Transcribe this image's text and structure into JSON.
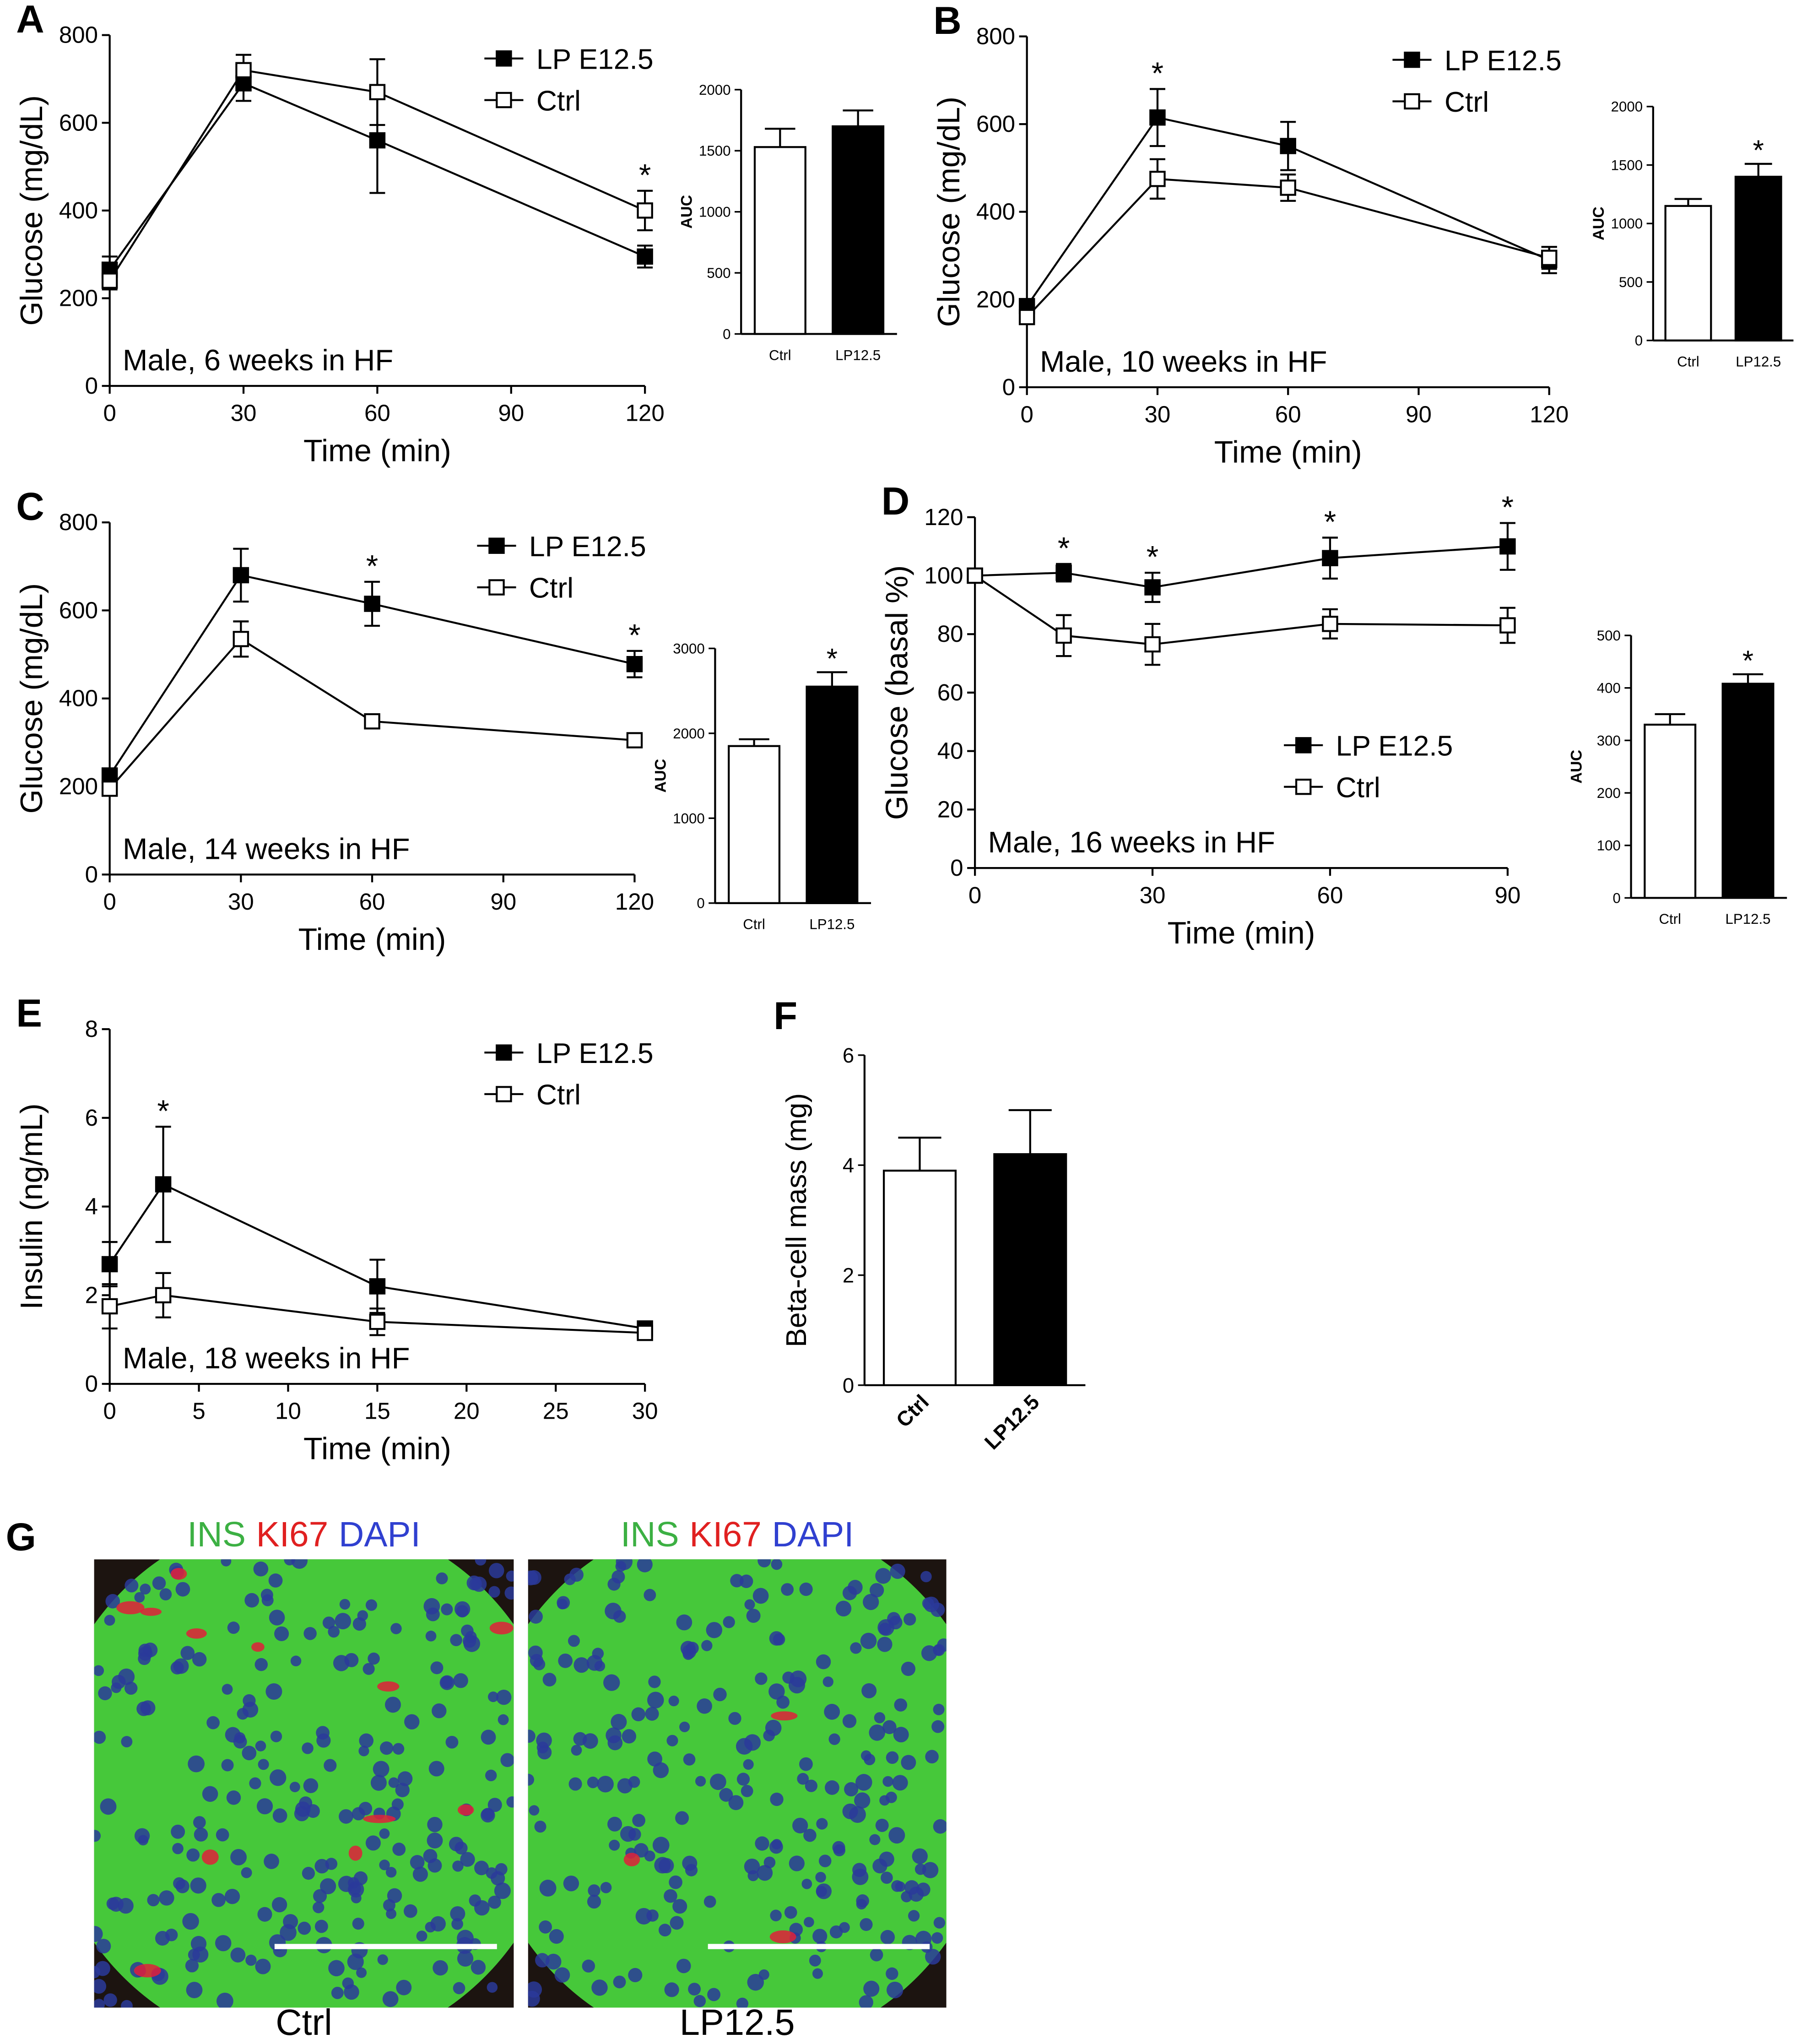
{
  "chart_data": [
    {
      "type": "line",
      "panel": "A",
      "xlabel": "Time (min)",
      "ylabel": "Glucose (mg/dL)",
      "annotation": "Male, 6 weeks in HF",
      "x": [
        0,
        30,
        60,
        120
      ],
      "xlim": [
        0,
        120
      ],
      "xticks": [
        0,
        30,
        60,
        90,
        120
      ],
      "ylim": [
        0,
        800
      ],
      "yticks": [
        0,
        200,
        400,
        600,
        800
      ],
      "legend": "upper right",
      "significance_label": "*",
      "significant": [
        false,
        false,
        false,
        true
      ],
      "series": [
        {
          "name": "LP E12.5",
          "color": "#000000",
          "marker": "square",
          "values": [
            265,
            690,
            560,
            295
          ],
          "errors": [
            30,
            40,
            120,
            25
          ]
        },
        {
          "name": "Ctrl",
          "color": "#ffffff",
          "marker": "square",
          "values": [
            240,
            720,
            670,
            400
          ],
          "errors": [
            20,
            35,
            75,
            45
          ]
        }
      ]
    },
    {
      "type": "bar",
      "ylabel": "AUC",
      "categories": [
        "Ctrl",
        "LP12.5"
      ],
      "values": [
        1530,
        1700
      ],
      "errors": [
        150,
        130
      ],
      "colors": [
        "#ffffff",
        "#000000"
      ],
      "ylim": [
        0,
        2000
      ],
      "yticks": [
        0,
        500,
        1000,
        1500,
        2000
      ],
      "significance_label": "*",
      "significant": [
        false,
        false
      ]
    },
    {
      "type": "line",
      "panel": "B",
      "xlabel": "Time (min)",
      "ylabel": "Glucose (mg/dL)",
      "annotation": "Male, 10 weeks in HF",
      "x": [
        0,
        30,
        60,
        120
      ],
      "xlim": [
        0,
        120
      ],
      "xticks": [
        0,
        30,
        60,
        90,
        120
      ],
      "ylim": [
        0,
        800
      ],
      "yticks": [
        0,
        200,
        400,
        600,
        800
      ],
      "legend": "upper right",
      "significance_label": "*",
      "significant": [
        false,
        true,
        false,
        false
      ],
      "series": [
        {
          "name": "LP E12.5",
          "color": "#000000",
          "marker": "square",
          "values": [
            185,
            615,
            550,
            290
          ],
          "errors": [
            10,
            65,
            55,
            30
          ]
        },
        {
          "name": "Ctrl",
          "color": "#ffffff",
          "marker": "square",
          "values": [
            160,
            475,
            455,
            295
          ],
          "errors": [
            15,
            45,
            30,
            25
          ]
        }
      ]
    },
    {
      "type": "bar",
      "ylabel": "AUC",
      "categories": [
        "Ctrl",
        "LP12.5"
      ],
      "values": [
        1150,
        1400
      ],
      "errors": [
        60,
        110
      ],
      "colors": [
        "#ffffff",
        "#000000"
      ],
      "ylim": [
        0,
        2000
      ],
      "yticks": [
        0,
        500,
        1000,
        1500,
        2000
      ],
      "significance_label": "*",
      "significant": [
        false,
        true
      ]
    },
    {
      "type": "line",
      "panel": "C",
      "xlabel": "Time (min)",
      "ylabel": "Glucose (mg/dL)",
      "annotation": "Male, 14 weeks in HF",
      "x": [
        0,
        30,
        60,
        120
      ],
      "xlim": [
        0,
        120
      ],
      "xticks": [
        0,
        30,
        60,
        90,
        120
      ],
      "ylim": [
        0,
        800
      ],
      "yticks": [
        0,
        200,
        400,
        600,
        800
      ],
      "legend": "upper right",
      "significance_label": "*",
      "significant": [
        false,
        false,
        true,
        true
      ],
      "series": [
        {
          "name": "LP E12.5",
          "color": "#000000",
          "marker": "square",
          "values": [
            225,
            680,
            615,
            478
          ],
          "errors": [
            15,
            60,
            50,
            30
          ]
        },
        {
          "name": "Ctrl",
          "color": "#ffffff",
          "marker": "square",
          "values": [
            195,
            535,
            348,
            305
          ],
          "errors": [
            10,
            40,
            10,
            10
          ]
        }
      ]
    },
    {
      "type": "bar",
      "ylabel": "AUC",
      "categories": [
        "Ctrl",
        "LP12.5"
      ],
      "values": [
        1850,
        2550
      ],
      "errors": [
        80,
        170
      ],
      "colors": [
        "#ffffff",
        "#000000"
      ],
      "ylim": [
        0,
        3000
      ],
      "yticks": [
        0,
        1000,
        2000,
        3000
      ],
      "significance_label": "*",
      "significant": [
        false,
        true
      ]
    },
    {
      "type": "line",
      "panel": "D",
      "xlabel": "Time (min)",
      "ylabel": "Glucose (basal %)",
      "annotation": "Male, 16 weeks in HF",
      "x": [
        0,
        15,
        30,
        60,
        90
      ],
      "xlim": [
        0,
        90
      ],
      "xticks": [
        0,
        30,
        60,
        90
      ],
      "ylim": [
        0,
        120
      ],
      "yticks": [
        0,
        20,
        40,
        60,
        80,
        100,
        120
      ],
      "legend": "lower right",
      "significance_label": "*",
      "significant": [
        false,
        true,
        true,
        true,
        true
      ],
      "series": [
        {
          "name": "LP E12.5",
          "color": "#000000",
          "marker": "square",
          "values": [
            100,
            101,
            96,
            106,
            110
          ],
          "errors": [
            0,
            3,
            5,
            7,
            8
          ]
        },
        {
          "name": "Ctrl",
          "color": "#ffffff",
          "marker": "square",
          "values": [
            100,
            79.5,
            76.5,
            83.5,
            83
          ],
          "errors": [
            0,
            7,
            7,
            5,
            6
          ]
        }
      ]
    },
    {
      "type": "bar",
      "ylabel": "AUC",
      "categories": [
        "Ctrl",
        "LP12.5"
      ],
      "values": [
        330,
        408
      ],
      "errors": [
        20,
        18
      ],
      "colors": [
        "#ffffff",
        "#000000"
      ],
      "ylim": [
        0,
        500
      ],
      "yticks": [
        0,
        100,
        200,
        300,
        400,
        500
      ],
      "significance_label": "*",
      "significant": [
        false,
        true
      ]
    },
    {
      "type": "line",
      "panel": "E",
      "xlabel": "Time (min)",
      "ylabel": "Insulin (ng/mL)",
      "annotation": "Male, 18 weeks in HF",
      "x": [
        0,
        3,
        15,
        30
      ],
      "xlim": [
        0,
        30
      ],
      "xticks": [
        0,
        5,
        10,
        15,
        20,
        25,
        30
      ],
      "ylim": [
        0,
        8
      ],
      "yticks": [
        0,
        2,
        4,
        6,
        8
      ],
      "legend": "upper right",
      "significance_label": "*",
      "significant": [
        false,
        true,
        false,
        false
      ],
      "series": [
        {
          "name": "LP E12.5",
          "color": "#000000",
          "marker": "square",
          "values": [
            2.7,
            4.5,
            2.2,
            1.25
          ],
          "errors": [
            0.5,
            1.3,
            0.6,
            0.05
          ]
        },
        {
          "name": "Ctrl",
          "color": "#ffffff",
          "marker": "square",
          "values": [
            1.75,
            2.0,
            1.4,
            1.15
          ],
          "errors": [
            0.5,
            0.5,
            0.3,
            0.05
          ]
        }
      ]
    },
    {
      "type": "bar",
      "panel": "F",
      "ylabel": "Beta-cell mass (mg)",
      "categories": [
        "Ctrl",
        "LP12.5"
      ],
      "values": [
        3.9,
        4.2
      ],
      "errors": [
        0.6,
        0.8
      ],
      "colors": [
        "#ffffff",
        "#000000"
      ],
      "ylim": [
        0,
        6
      ],
      "yticks": [
        0,
        2,
        4,
        6
      ],
      "xtick_rotation": 45,
      "significance_label": "*",
      "significant": [
        false,
        false
      ]
    }
  ],
  "figure_g": {
    "panel": "G",
    "stains": [
      {
        "label": "INS",
        "color": "#3cb043"
      },
      {
        "label": "KI67",
        "color": "#e02020"
      },
      {
        "label": "DAPI",
        "color": "#3040d0"
      }
    ],
    "images": [
      {
        "caption": "Ctrl"
      },
      {
        "caption": "LP12.5"
      }
    ]
  }
}
